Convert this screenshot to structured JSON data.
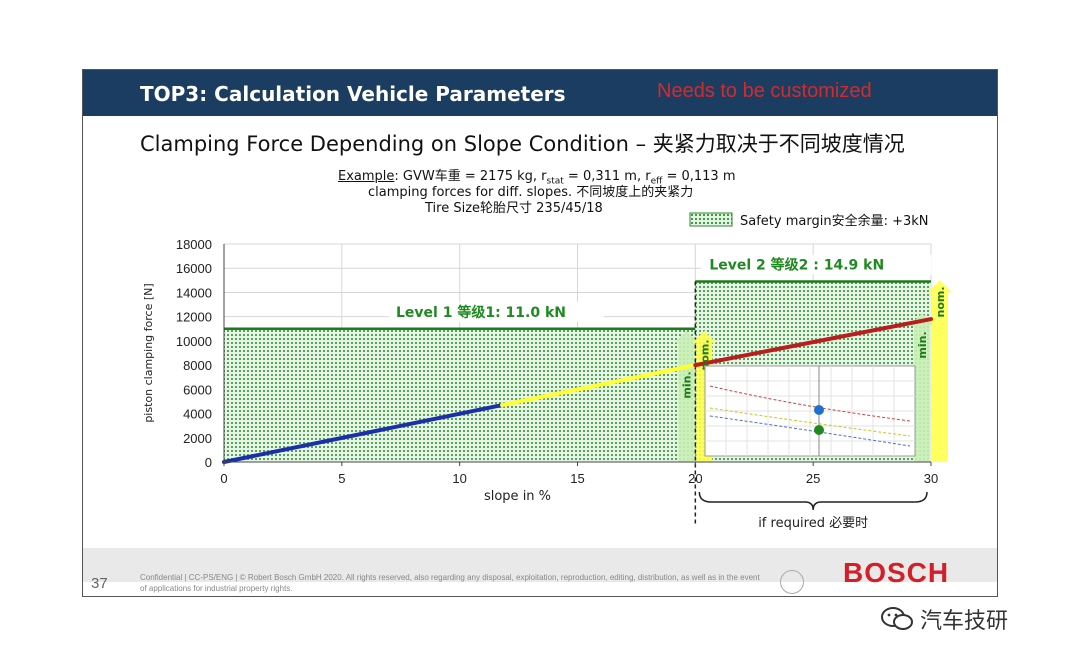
{
  "header": {
    "title": "TOP3: Calculation Vehicle Parameters",
    "note": "Needs to be customized"
  },
  "heading": {
    "main": "Clamping Force Depending on Slope Condition – 夹紧力取决于不同坡度情况"
  },
  "example": {
    "prefix": "Example",
    "line1_rest": ": GVW车重 = 2175 kg, r",
    "r_stat_sub": "stat",
    "line1_mid": " = 0,311 m, r",
    "r_eff_sub": "eff",
    "line1_end": " = 0,113 m",
    "line2": "clamping forces for diff. slopes. 不同坡度上的夹紧力",
    "line3": "Tire Size轮胎尺寸 235/45/18"
  },
  "chart_data": {
    "type": "line",
    "xlabel": "slope in %",
    "ylabel": "piston clamping force [N]",
    "xlim": [
      0,
      30
    ],
    "ylim": [
      0,
      18000
    ],
    "x_ticks": [
      "0",
      "5",
      "10",
      "15",
      "20",
      "25",
      "30"
    ],
    "y_ticks": [
      "0",
      "2000",
      "4000",
      "6000",
      "8000",
      "10000",
      "12000",
      "14000",
      "16000",
      "18000"
    ],
    "grid": true,
    "series": [
      {
        "color": "#1b2fa8",
        "x": [
          0,
          11.8
        ],
        "y": [
          0,
          4700
        ]
      },
      {
        "color": "#ffff33",
        "x": [
          11.8,
          20
        ],
        "y": [
          4700,
          8000
        ]
      },
      {
        "color": "#b81e1e",
        "x": [
          20,
          30
        ],
        "y": [
          8000,
          11800
        ]
      }
    ],
    "levels": [
      {
        "label": "Level 1 等级1: 11.0 kN",
        "x_from": 0,
        "x_to": 20,
        "value": 11000
      },
      {
        "label": "Level 2 等级2 : 14.9 kN",
        "x_from": 20,
        "x_to": 30,
        "value": 14900
      }
    ],
    "legend": {
      "label": "Safety margin安全余量: +3kN",
      "position": "top-right"
    },
    "arrow_labels": {
      "min": "min.",
      "nom": "nom."
    },
    "bracket_label": "if required 必要时"
  },
  "colors": {
    "header_bg": "#1c3d62",
    "safety_green": "#2c8a2c",
    "arrow_green": "#c8f0b4",
    "arrow_yellow": "#ffff4d",
    "logo_red": "#d21f28"
  },
  "footer": {
    "page_number": "37",
    "text": "Confidential | CC-PS/ENG | © Robert Bosch GmbH 2020. All rights reserved, also regarding any disposal, exploitation, reproduction, editing, distribution, as well as in the event of applications for industrial property rights.",
    "logo": "BOSCH"
  },
  "watermark": {
    "text": "汽车技研"
  }
}
